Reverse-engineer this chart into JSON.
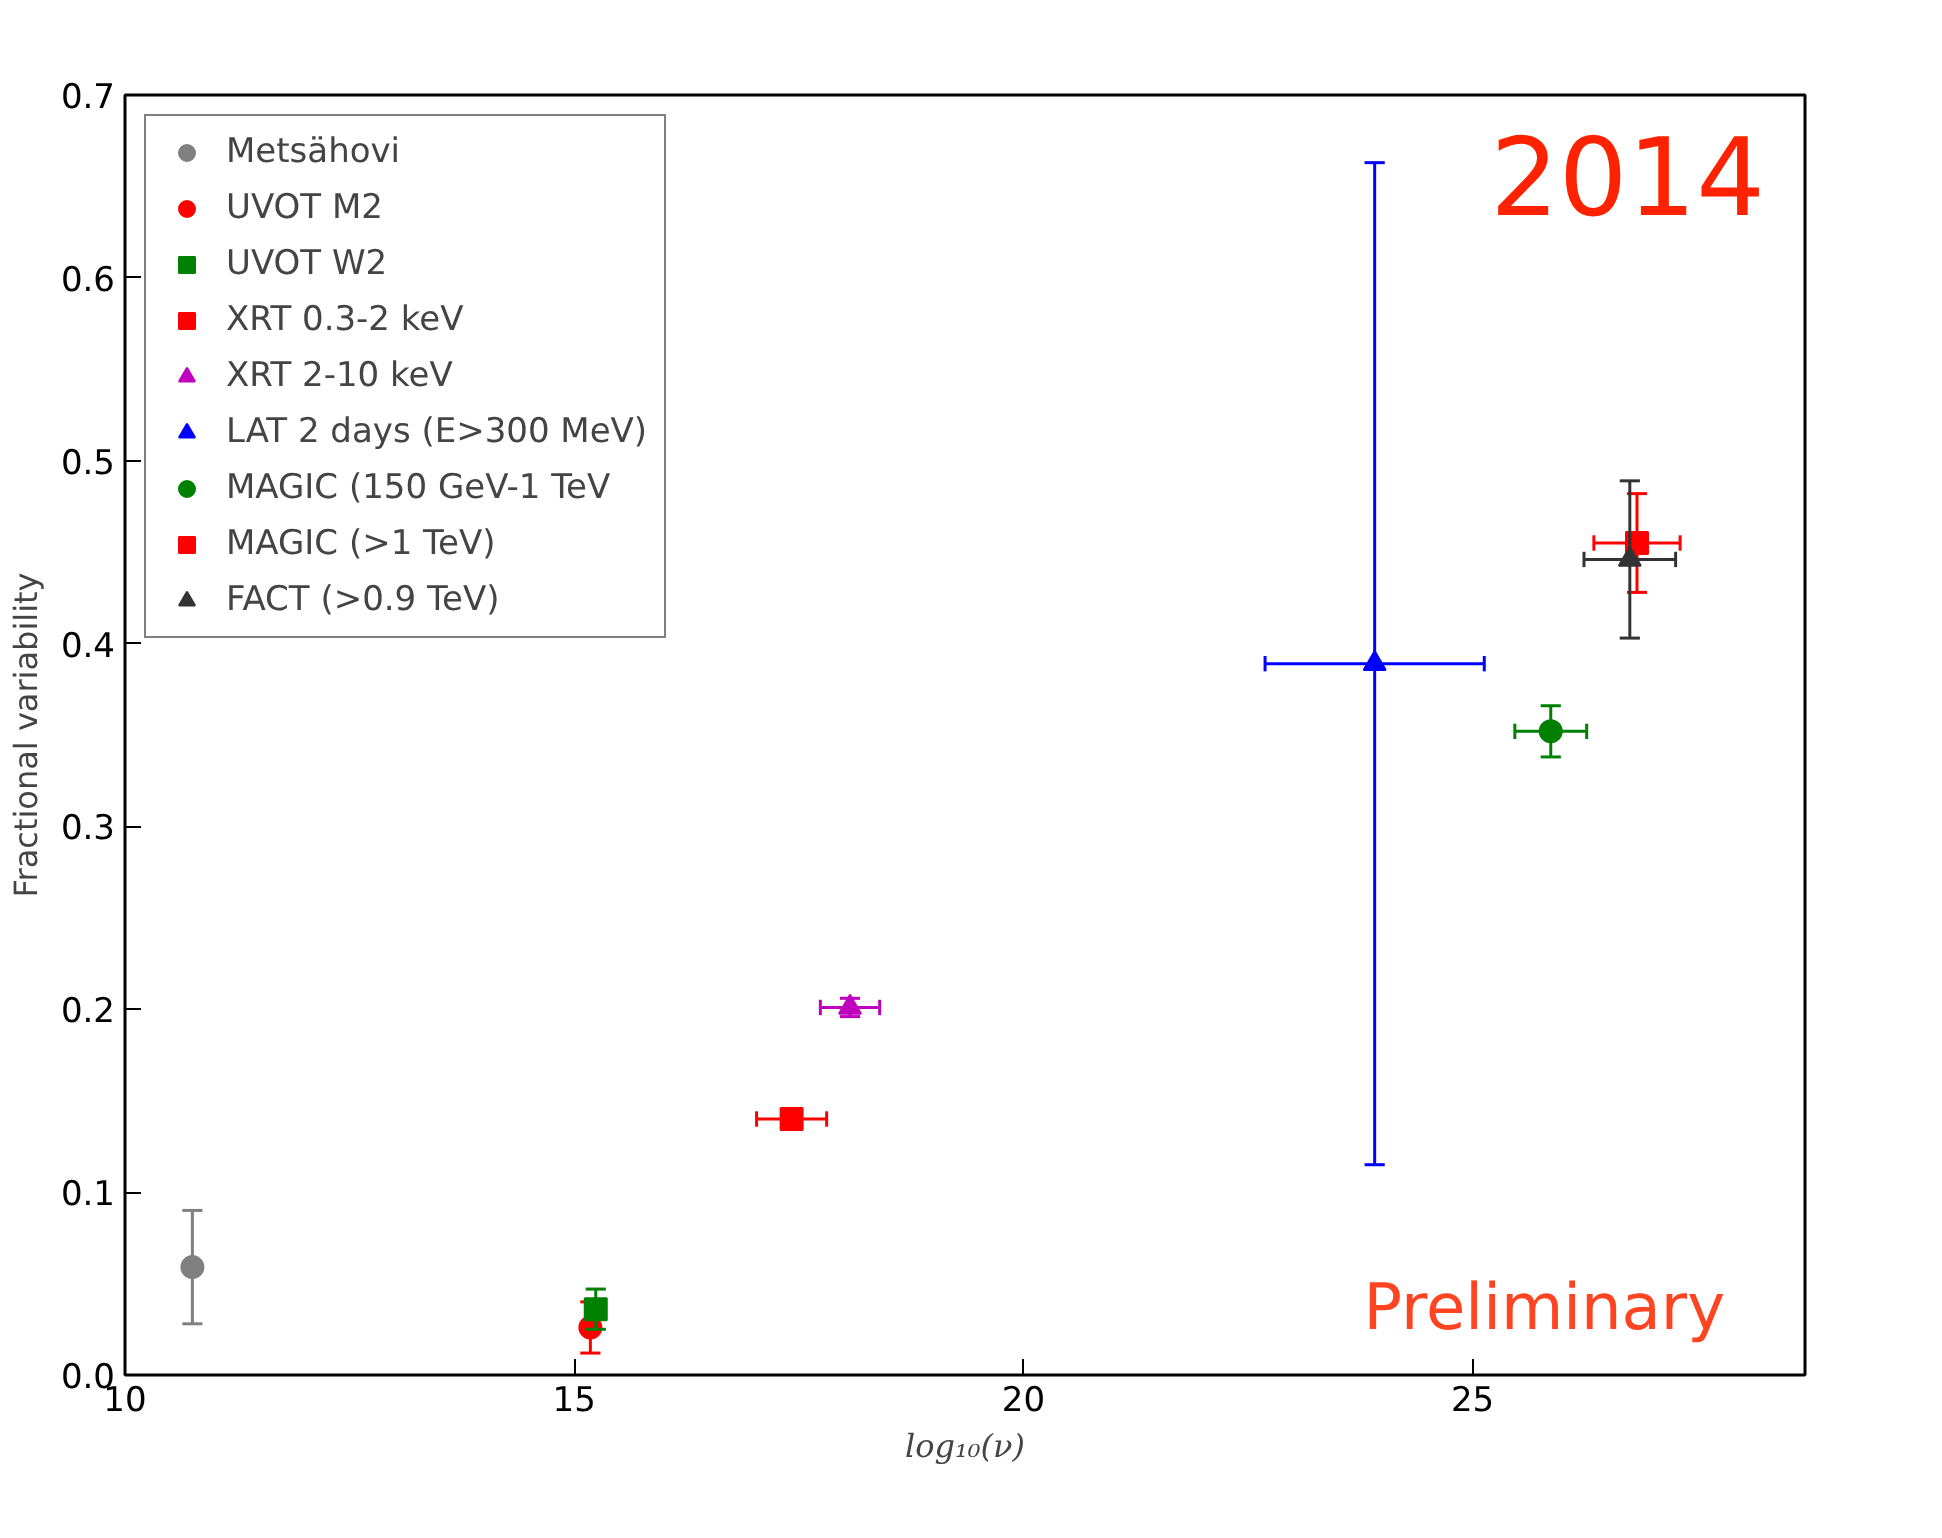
{
  "chart_data": {
    "type": "scatter",
    "xlabel": "log₁₀(ν)",
    "ylabel": "Fractional variability",
    "xlim": [
      10,
      28.7
    ],
    "ylim": [
      0,
      0.7
    ],
    "xticks": [
      10,
      15,
      20,
      25
    ],
    "yticks": [
      {
        "value": 0,
        "label": "0.0"
      },
      0.1,
      0.2,
      0.3,
      0.4,
      0.5,
      0.6,
      0.7
    ],
    "grid": false,
    "legend": "top left",
    "annotations": [
      "2014",
      "Preliminary"
    ],
    "series": [
      {
        "name": "Metsähovi",
        "color": "#808080",
        "marker": "circle",
        "x": [
          10.75
        ],
        "values": [
          0.059
        ],
        "errors": [
          0.031
        ]
      },
      {
        "name": "UVOT M2",
        "color": "#ff0000",
        "marker": "circle",
        "x": [
          15.18
        ],
        "values": [
          0.026
        ],
        "errors": [
          0.014
        ]
      },
      {
        "name": "UVOT W2",
        "color": "#008000",
        "marker": "square",
        "x": [
          15.24
        ],
        "values": [
          0.036
        ],
        "errors": [
          0.011
        ]
      },
      {
        "name": "XRT 0.3-2 keV",
        "color": "#ff0000",
        "marker": "square",
        "x": [
          17.42
        ],
        "values": [
          0.14
        ],
        "errors": [
          0.004
        ],
        "xerrors": [
          0.39
        ]
      },
      {
        "name": "XRT 2-10 keV",
        "color": "#bf00bf",
        "marker": "triangle",
        "x": [
          18.07
        ],
        "values": [
          0.201
        ],
        "errors": [
          0.005
        ],
        "xerrors": [
          0.33
        ]
      },
      {
        "name": "LAT 2 days (E>300 MeV)",
        "color": "#0000ff",
        "marker": "triangle",
        "x": [
          23.91
        ],
        "values": [
          0.389
        ],
        "errors": [
          0.274
        ],
        "xerrors": [
          1.22
        ]
      },
      {
        "name": "MAGIC (150 GeV-1 TeV",
        "color": "#008000",
        "marker": "circle",
        "x": [
          25.87
        ],
        "values": [
          0.352
        ],
        "errors": [
          0.014
        ],
        "xerrors": [
          0.4
        ]
      },
      {
        "name": "MAGIC (>1 TeV)",
        "color": "#ff0000",
        "marker": "square",
        "x": [
          26.83
        ],
        "values": [
          0.455
        ],
        "errors": [
          0.027
        ],
        "xerrors": [
          0.48
        ]
      },
      {
        "name": "FACT (>0.9 TeV)",
        "color": "#333333",
        "marker": "triangle",
        "x": [
          26.75
        ],
        "values": [
          0.446
        ],
        "errors": [
          0.043
        ],
        "xerrors": [
          0.51
        ]
      }
    ]
  }
}
